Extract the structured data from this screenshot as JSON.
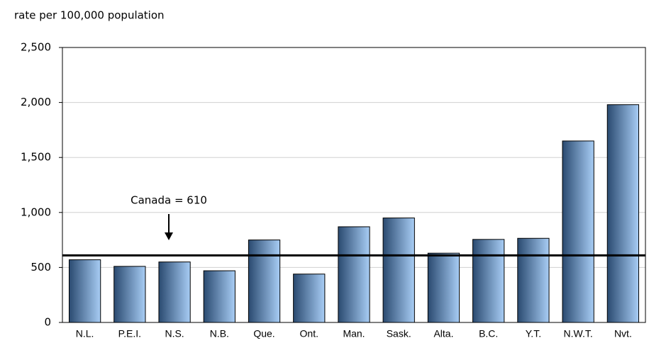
{
  "chart_data": {
    "type": "bar",
    "y_axis_label": "rate per 100,000 population",
    "categories": [
      "N.L.",
      "P.E.I.",
      "N.S.",
      "N.B.",
      "Que.",
      "Ont.",
      "Man.",
      "Sask.",
      "Alta.",
      "B.C.",
      "Y.T.",
      "N.W.T.",
      "Nvt."
    ],
    "values": [
      570,
      510,
      550,
      470,
      750,
      440,
      870,
      950,
      630,
      755,
      765,
      1650,
      1980
    ],
    "color": "#a8cdf5",
    "ylim": [
      0,
      2500
    ],
    "yticks": [
      0,
      500,
      {
        "value": 1000,
        "label": "1,000"
      },
      {
        "value": 1500,
        "label": "1,500"
      },
      {
        "value": 2000,
        "label": "2,000"
      },
      {
        "value": 2500,
        "label": "2,500"
      }
    ],
    "grid": true,
    "reference_line": {
      "value": 610,
      "label": "Canada = 610"
    }
  }
}
